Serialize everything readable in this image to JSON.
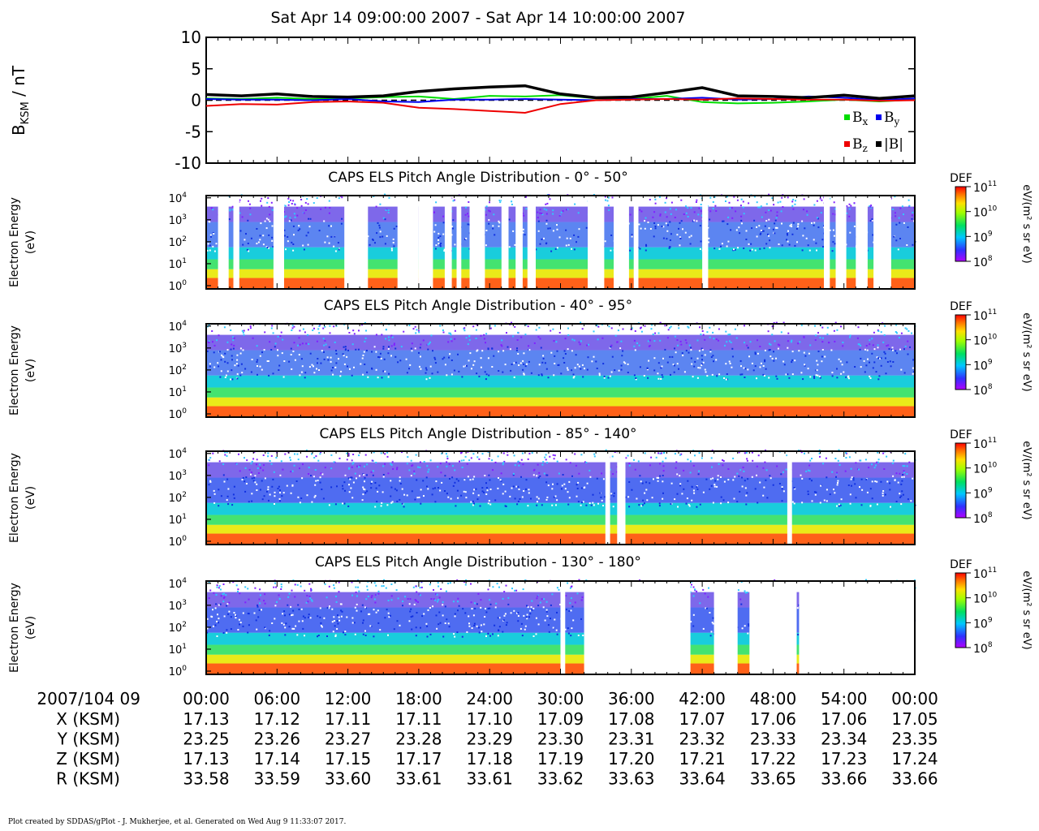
{
  "title": "Sat Apr 14 09:00:00 2007 - Sat Apr 14 10:00:00 2007",
  "footer": "Plot created by SDDAS/gPlot - J. Mukherjee, et al.  Generated on Wed Aug 9 11:33:07 2017.",
  "colors": {
    "bx": "#00dd00",
    "by": "#0000ee",
    "bz": "#ee0000",
    "bmag": "#000000"
  },
  "chart_data": [
    {
      "type": "line",
      "ylabel": "B",
      "ylabel_sub": "KSM",
      "ylabel_unit": " / nT",
      "ylim": [
        -10,
        10
      ],
      "yticks": [
        "10",
        "5",
        "0",
        "-5",
        "-10"
      ],
      "ytick_values": [
        10,
        5,
        0,
        -5,
        -10
      ],
      "xlim_min": [
        0,
        60
      ],
      "legend": [
        {
          "key": "bx",
          "label": "B",
          "sub": "x"
        },
        {
          "key": "by",
          "label": "B",
          "sub": "y"
        },
        {
          "key": "bz",
          "label": "B",
          "sub": "z"
        },
        {
          "key": "bmag",
          "label": "|B|",
          "sub": ""
        }
      ],
      "x_min": [
        0,
        3,
        6,
        9,
        12,
        15,
        18,
        21,
        24,
        27,
        30,
        33,
        36,
        39,
        42,
        45,
        48,
        51,
        54,
        57,
        60
      ],
      "series": [
        {
          "key": "bx",
          "name": "Bx",
          "values": [
            0.3,
            0.2,
            0.4,
            0.2,
            0.3,
            0.5,
            0.6,
            0.2,
            0.7,
            0.6,
            0.8,
            0.3,
            0.2,
            0.7,
            -0.3,
            -0.5,
            -0.4,
            -0.2,
            0.1,
            -0.2,
            0.1
          ]
        },
        {
          "key": "by",
          "name": "By",
          "values": [
            0.2,
            0.1,
            0.1,
            0.0,
            0.2,
            -0.2,
            -0.3,
            0.1,
            0.1,
            0.2,
            0.1,
            0.0,
            0.2,
            0.2,
            0.4,
            0.1,
            0.2,
            0.6,
            0.4,
            0.0,
            0.3
          ]
        },
        {
          "key": "bz",
          "name": "Bz",
          "values": [
            -0.9,
            -0.6,
            -0.7,
            -0.3,
            -0.2,
            -0.4,
            -1.2,
            -1.4,
            -1.7,
            -2.0,
            -0.6,
            0.0,
            0.1,
            0.2,
            0.1,
            0.3,
            0.2,
            0.1,
            0.1,
            -0.1,
            0.0
          ]
        },
        {
          "key": "bmag",
          "name": "|B|",
          "values": [
            0.9,
            0.7,
            1.0,
            0.6,
            0.5,
            0.7,
            1.4,
            1.8,
            2.1,
            2.3,
            1.0,
            0.4,
            0.5,
            1.2,
            2.0,
            0.7,
            0.6,
            0.4,
            0.8,
            0.3,
            0.7
          ]
        }
      ]
    },
    {
      "type": "heatmap",
      "title": "CAPS ELS Pitch Angle Distribution - 0° - 50°",
      "ylabel": "Electron Energy",
      "ylabel2": "(eV)",
      "yticks": [
        "10",
        "10",
        "10",
        "10",
        "10"
      ],
      "ytick_exp": [
        "0",
        "1",
        "2",
        "3",
        "4"
      ],
      "colorbar": {
        "label": "DEF",
        "unit": "eV/(m² s sr eV)",
        "ticks": [
          "10",
          "10",
          "10",
          "10"
        ],
        "tick_exp": [
          "11",
          "10",
          "9",
          "8"
        ]
      },
      "gaps_min": [
        [
          1.0,
          1.9
        ],
        [
          2.3,
          2.8
        ],
        [
          5.7,
          6.6
        ],
        [
          11.7,
          13.7
        ],
        [
          16.2,
          18.0
        ],
        [
          18.0,
          19.2
        ],
        [
          20.2,
          20.8
        ],
        [
          21.2,
          21.6
        ],
        [
          22.3,
          23.6
        ],
        [
          25.0,
          25.6
        ],
        [
          26.2,
          26.8
        ],
        [
          27.2,
          27.9
        ],
        [
          32.3,
          33.7
        ],
        [
          34.5,
          35.8
        ],
        [
          36.2,
          36.6
        ],
        [
          42.0,
          42.5
        ],
        [
          52.3,
          52.8
        ],
        [
          53.3,
          54.2
        ],
        [
          55.0,
          56.0
        ],
        [
          56.5,
          58.0
        ]
      ]
    },
    {
      "type": "heatmap",
      "title": "CAPS ELS Pitch Angle Distribution - 40° - 95°",
      "ylabel": "Electron Energy",
      "ylabel2": "(eV)",
      "yticks": [
        "10",
        "10",
        "10",
        "10",
        "10"
      ],
      "ytick_exp": [
        "0",
        "1",
        "2",
        "3",
        "4"
      ],
      "colorbar": {
        "label": "DEF",
        "unit": "eV/(m² s sr eV)",
        "ticks": [
          "10",
          "10",
          "10",
          "10"
        ],
        "tick_exp": [
          "11",
          "10",
          "9",
          "8"
        ]
      },
      "gaps_min": []
    },
    {
      "type": "heatmap",
      "title": "CAPS ELS Pitch Angle Distribution - 85° - 140°",
      "ylabel": "Electron Energy",
      "ylabel2": "(eV)",
      "yticks": [
        "10",
        "10",
        "10",
        "10",
        "10"
      ],
      "ytick_exp": [
        "0",
        "1",
        "2",
        "3",
        "4"
      ],
      "colorbar": {
        "label": "DEF",
        "unit": "eV/(m² s sr eV)",
        "ticks": [
          "10",
          "10",
          "10",
          "10"
        ],
        "tick_exp": [
          "11",
          "10",
          "9",
          "8"
        ]
      },
      "gaps_min": [
        [
          33.8,
          34.2
        ],
        [
          34.8,
          35.5
        ],
        [
          49.2,
          49.6
        ]
      ]
    },
    {
      "type": "heatmap",
      "title": "CAPS ELS Pitch Angle Distribution - 130° - 180°",
      "ylabel": "Electron Energy",
      "ylabel2": "(eV)",
      "yticks": [
        "10",
        "10",
        "10",
        "10",
        "10"
      ],
      "ytick_exp": [
        "0",
        "1",
        "2",
        "3",
        "4"
      ],
      "colorbar": {
        "label": "DEF",
        "unit": "eV/(m² s sr eV)",
        "ticks": [
          "10",
          "10",
          "10",
          "10"
        ],
        "tick_exp": [
          "11",
          "10",
          "9",
          "8"
        ]
      },
      "gaps_min": [
        [
          30.0,
          30.4
        ],
        [
          32.0,
          41.0
        ],
        [
          43.0,
          45.0
        ],
        [
          46.0,
          50.0
        ],
        [
          50.2,
          60.0
        ]
      ]
    }
  ],
  "x_axis": {
    "date_label": "2007/104 09",
    "ticks": [
      "00:00",
      "06:00",
      "12:00",
      "18:00",
      "24:00",
      "30:00",
      "36:00",
      "42:00",
      "48:00",
      "54:00",
      "00:00"
    ],
    "rows": [
      {
        "label": "X (KSM)",
        "values": [
          "17.13",
          "17.12",
          "17.11",
          "17.11",
          "17.10",
          "17.09",
          "17.08",
          "17.07",
          "17.06",
          "17.06",
          "17.05"
        ]
      },
      {
        "label": "Y (KSM)",
        "values": [
          "23.25",
          "23.26",
          "23.27",
          "23.28",
          "23.29",
          "23.30",
          "23.31",
          "23.32",
          "23.33",
          "23.34",
          "23.35"
        ]
      },
      {
        "label": "Z (KSM)",
        "values": [
          "17.13",
          "17.14",
          "17.15",
          "17.17",
          "17.18",
          "17.19",
          "17.20",
          "17.21",
          "17.22",
          "17.23",
          "17.24"
        ]
      },
      {
        "label": "R (KSM)",
        "values": [
          "33.58",
          "33.59",
          "33.60",
          "33.61",
          "33.61",
          "33.62",
          "33.63",
          "33.64",
          "33.65",
          "33.66",
          "33.66"
        ]
      }
    ]
  }
}
